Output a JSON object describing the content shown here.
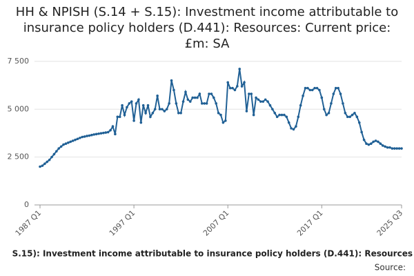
{
  "chart_data": {
    "type": "line",
    "title": "HH & NPISH (S.14 + S.15): Investment income attributable to insurance policy holders (D.441): Resources: Current price: £m: SA",
    "categories": [
      "1987 Q1",
      null,
      null,
      null,
      null,
      null,
      null,
      null,
      null,
      null,
      null,
      null,
      null,
      null,
      null,
      null,
      null,
      null,
      null,
      null,
      null,
      null,
      null,
      null,
      null,
      null,
      null,
      null,
      null,
      null,
      null,
      null,
      null,
      null,
      null,
      null,
      null,
      null,
      null,
      null,
      "1997 Q1",
      null,
      null,
      null,
      null,
      null,
      null,
      null,
      null,
      null,
      null,
      null,
      null,
      null,
      null,
      null,
      null,
      null,
      null,
      null,
      null,
      null,
      null,
      null,
      null,
      null,
      null,
      null,
      null,
      null,
      null,
      null,
      null,
      null,
      null,
      null,
      null,
      null,
      null,
      null,
      "2007 Q1",
      null,
      null,
      null,
      null,
      null,
      null,
      null,
      null,
      null,
      null,
      null,
      null,
      null,
      null,
      null,
      null,
      null,
      null,
      null,
      null,
      null,
      null,
      null,
      null,
      null,
      null,
      null,
      null,
      null,
      null,
      null,
      null,
      null,
      null,
      null,
      null,
      null,
      null,
      null,
      "2017 Q1",
      null,
      null,
      null,
      null,
      null,
      null,
      null,
      null,
      null,
      null,
      null,
      null,
      null,
      null,
      null,
      null,
      null,
      null,
      null,
      null,
      null,
      null,
      null,
      null,
      null,
      null,
      null,
      null,
      null,
      null,
      null,
      null,
      null,
      "2025 Q3"
    ],
    "series": [
      {
        "name": "S.15): Investment income attributable to insurance policy holders (D.441): Resources",
        "color": "#206095",
        "values": [
          2000,
          2050,
          2150,
          2250,
          2350,
          2500,
          2650,
          2800,
          2950,
          3050,
          3150,
          3200,
          3250,
          3300,
          3350,
          3400,
          3450,
          3500,
          3550,
          3570,
          3600,
          3620,
          3650,
          3680,
          3700,
          3720,
          3740,
          3760,
          3780,
          3800,
          3900,
          4100,
          3700,
          4600,
          4600,
          5200,
          4700,
          5100,
          5300,
          5400,
          4400,
          5300,
          5500,
          4300,
          5200,
          4800,
          5200,
          4600,
          4800,
          5000,
          5700,
          5000,
          5000,
          4900,
          5000,
          5300,
          6500,
          6000,
          5300,
          4800,
          4800,
          5400,
          5900,
          5500,
          5400,
          5600,
          5600,
          5600,
          5800,
          5300,
          5300,
          5300,
          5800,
          5800,
          5600,
          5300,
          4800,
          4700,
          4300,
          4400,
          6400,
          6100,
          6100,
          6000,
          6200,
          7100,
          6200,
          6400,
          4900,
          5800,
          5800,
          4700,
          5600,
          5500,
          5400,
          5400,
          5500,
          5400,
          5200,
          5000,
          4800,
          4600,
          4700,
          4700,
          4700,
          4600,
          4300,
          4000,
          3950,
          4100,
          4600,
          5200,
          5700,
          6100,
          6100,
          6000,
          6000,
          6100,
          6100,
          6000,
          5600,
          5000,
          4700,
          4800,
          5300,
          5800,
          6100,
          6100,
          5800,
          5300,
          4800,
          4600,
          4600,
          4700,
          4800,
          4600,
          4300,
          3800,
          3400,
          3200,
          3150,
          3200,
          3300,
          3350,
          3300,
          3200,
          3100,
          3050,
          3000,
          3000,
          2950,
          2950,
          2950,
          2950,
          2950
        ]
      }
    ],
    "ylim": [
      0,
      8000
    ],
    "yticks": [
      0,
      {
        "value": 2500,
        "label": "2 500"
      },
      {
        "value": 5000,
        "label": "5 000"
      },
      {
        "value": 7500,
        "label": "7 500"
      }
    ],
    "grid": true,
    "source": "Source:"
  }
}
